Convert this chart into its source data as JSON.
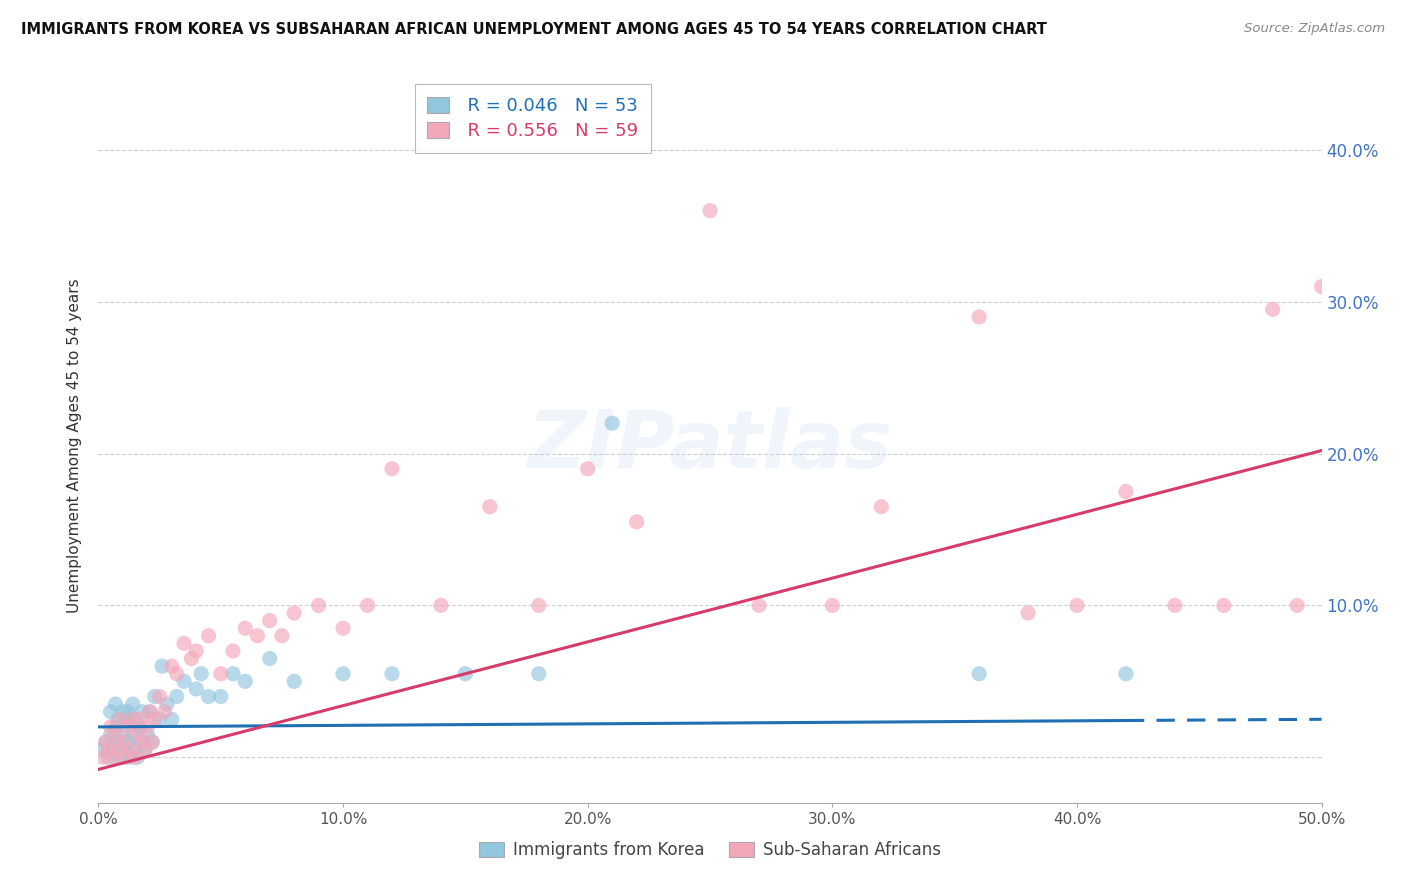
{
  "title": "IMMIGRANTS FROM KOREA VS SUBSAHARAN AFRICAN UNEMPLOYMENT AMONG AGES 45 TO 54 YEARS CORRELATION CHART",
  "source": "Source: ZipAtlas.com",
  "ylabel": "Unemployment Among Ages 45 to 54 years",
  "xlim": [
    0.0,
    0.5
  ],
  "ylim": [
    -0.03,
    0.44
  ],
  "xticks": [
    0.0,
    0.1,
    0.2,
    0.3,
    0.4,
    0.5
  ],
  "xticklabels": [
    "0.0%",
    "10.0%",
    "20.0%",
    "30.0%",
    "40.0%",
    "50.0%"
  ],
  "ytick_positions": [
    0.0,
    0.1,
    0.2,
    0.3,
    0.4
  ],
  "yticklabels_right": [
    "",
    "10.0%",
    "20.0%",
    "30.0%",
    "40.0%"
  ],
  "legend_korea_r": "R = 0.046",
  "legend_korea_n": "N = 53",
  "legend_africa_r": "R = 0.556",
  "legend_africa_n": "N = 59",
  "korea_color": "#92c5de",
  "africa_color": "#f4a7b9",
  "korea_line_color": "#1f6fb2",
  "africa_line_color": "#d63b6a",
  "background_color": "#ffffff",
  "watermark": "ZIPatlas",
  "korea_x": [
    0.002,
    0.003,
    0.004,
    0.005,
    0.005,
    0.006,
    0.007,
    0.007,
    0.008,
    0.008,
    0.009,
    0.01,
    0.01,
    0.011,
    0.011,
    0.012,
    0.012,
    0.013,
    0.013,
    0.014,
    0.014,
    0.015,
    0.015,
    0.016,
    0.017,
    0.018,
    0.018,
    0.019,
    0.02,
    0.021,
    0.022,
    0.023,
    0.025,
    0.026,
    0.028,
    0.03,
    0.032,
    0.035,
    0.04,
    0.042,
    0.045,
    0.05,
    0.055,
    0.06,
    0.07,
    0.08,
    0.1,
    0.12,
    0.15,
    0.18,
    0.21,
    0.36,
    0.42
  ],
  "korea_y": [
    0.005,
    0.01,
    0.0,
    0.015,
    0.03,
    0.005,
    0.02,
    0.035,
    0.01,
    0.025,
    0.0,
    0.015,
    0.03,
    0.005,
    0.025,
    0.01,
    0.03,
    0.0,
    0.025,
    0.015,
    0.035,
    0.005,
    0.025,
    0.0,
    0.02,
    0.01,
    0.03,
    0.005,
    0.015,
    0.03,
    0.01,
    0.04,
    0.025,
    0.06,
    0.035,
    0.025,
    0.04,
    0.05,
    0.045,
    0.055,
    0.04,
    0.04,
    0.055,
    0.05,
    0.065,
    0.05,
    0.055,
    0.055,
    0.055,
    0.055,
    0.22,
    0.055,
    0.055
  ],
  "africa_x": [
    0.002,
    0.003,
    0.004,
    0.005,
    0.006,
    0.007,
    0.008,
    0.009,
    0.01,
    0.011,
    0.012,
    0.013,
    0.014,
    0.015,
    0.016,
    0.017,
    0.018,
    0.019,
    0.02,
    0.021,
    0.022,
    0.023,
    0.025,
    0.027,
    0.03,
    0.032,
    0.035,
    0.038,
    0.04,
    0.045,
    0.05,
    0.055,
    0.06,
    0.065,
    0.07,
    0.075,
    0.08,
    0.09,
    0.1,
    0.11,
    0.12,
    0.14,
    0.16,
    0.18,
    0.2,
    0.22,
    0.25,
    0.27,
    0.3,
    0.32,
    0.36,
    0.38,
    0.4,
    0.42,
    0.44,
    0.46,
    0.48,
    0.49,
    0.5
  ],
  "africa_y": [
    0.0,
    0.01,
    0.005,
    0.02,
    0.0,
    0.015,
    0.005,
    0.025,
    0.01,
    0.0,
    0.02,
    0.005,
    0.025,
    0.0,
    0.015,
    0.025,
    0.01,
    0.005,
    0.02,
    0.03,
    0.01,
    0.025,
    0.04,
    0.03,
    0.06,
    0.055,
    0.075,
    0.065,
    0.07,
    0.08,
    0.055,
    0.07,
    0.085,
    0.08,
    0.09,
    0.08,
    0.095,
    0.1,
    0.085,
    0.1,
    0.19,
    0.1,
    0.165,
    0.1,
    0.19,
    0.155,
    0.36,
    0.1,
    0.1,
    0.165,
    0.29,
    0.095,
    0.1,
    0.175,
    0.1,
    0.1,
    0.295,
    0.1,
    0.31
  ],
  "korea_line_intercept": 0.02,
  "korea_line_slope": 0.01,
  "africa_line_intercept": -0.008,
  "africa_line_slope": 0.42
}
